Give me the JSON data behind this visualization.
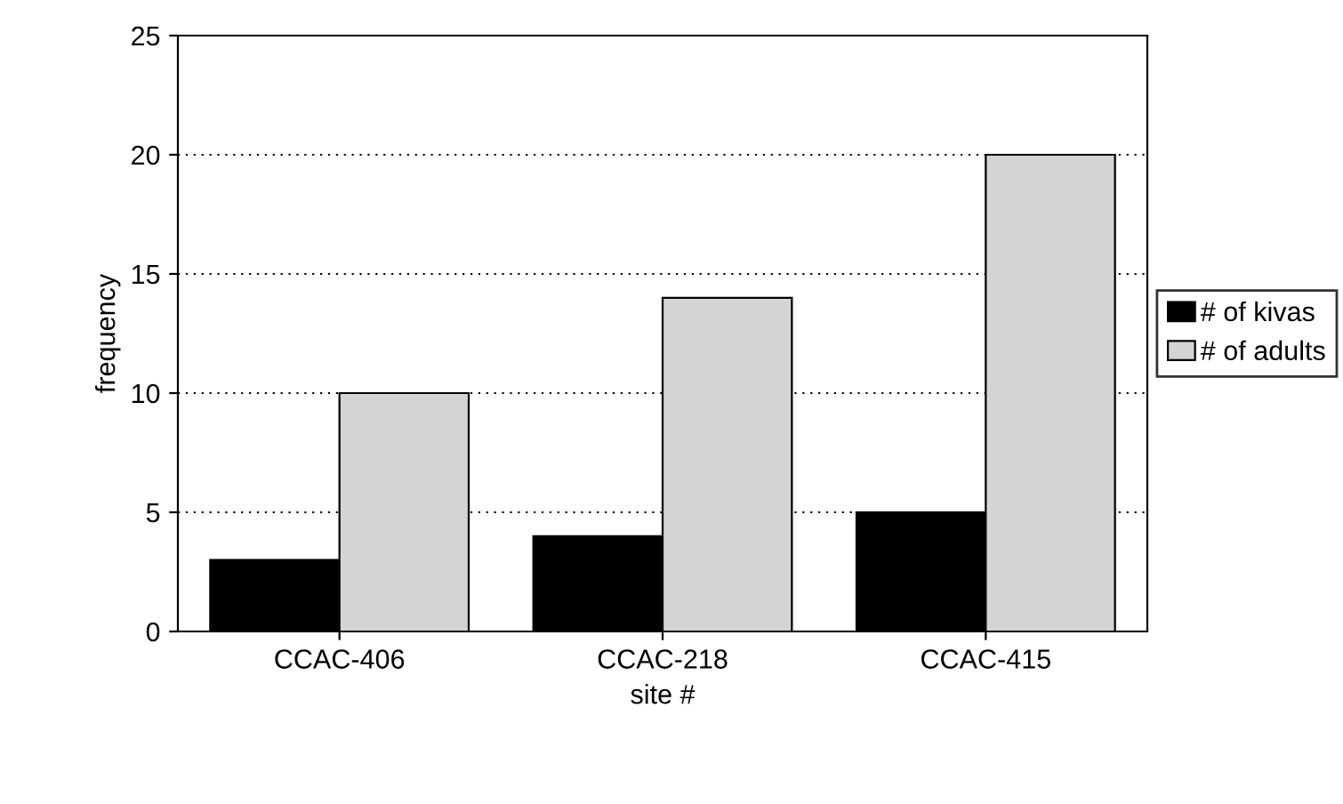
{
  "chart_data": {
    "type": "bar",
    "xlabel": "site #",
    "ylabel": "frequency",
    "categories": [
      "CCAC-406",
      "CCAC-218",
      "CCAC-415"
    ],
    "series": [
      {
        "name": "# of kivas",
        "color": "#000000",
        "values": [
          3,
          4,
          5
        ]
      },
      {
        "name": "# of adults",
        "color": "#d4d4d4",
        "values": [
          10,
          14,
          20
        ]
      }
    ],
    "ylim": [
      0,
      25
    ],
    "yticks": [
      0,
      5,
      10,
      15,
      20,
      25
    ],
    "grid": "y",
    "legend": "right"
  }
}
